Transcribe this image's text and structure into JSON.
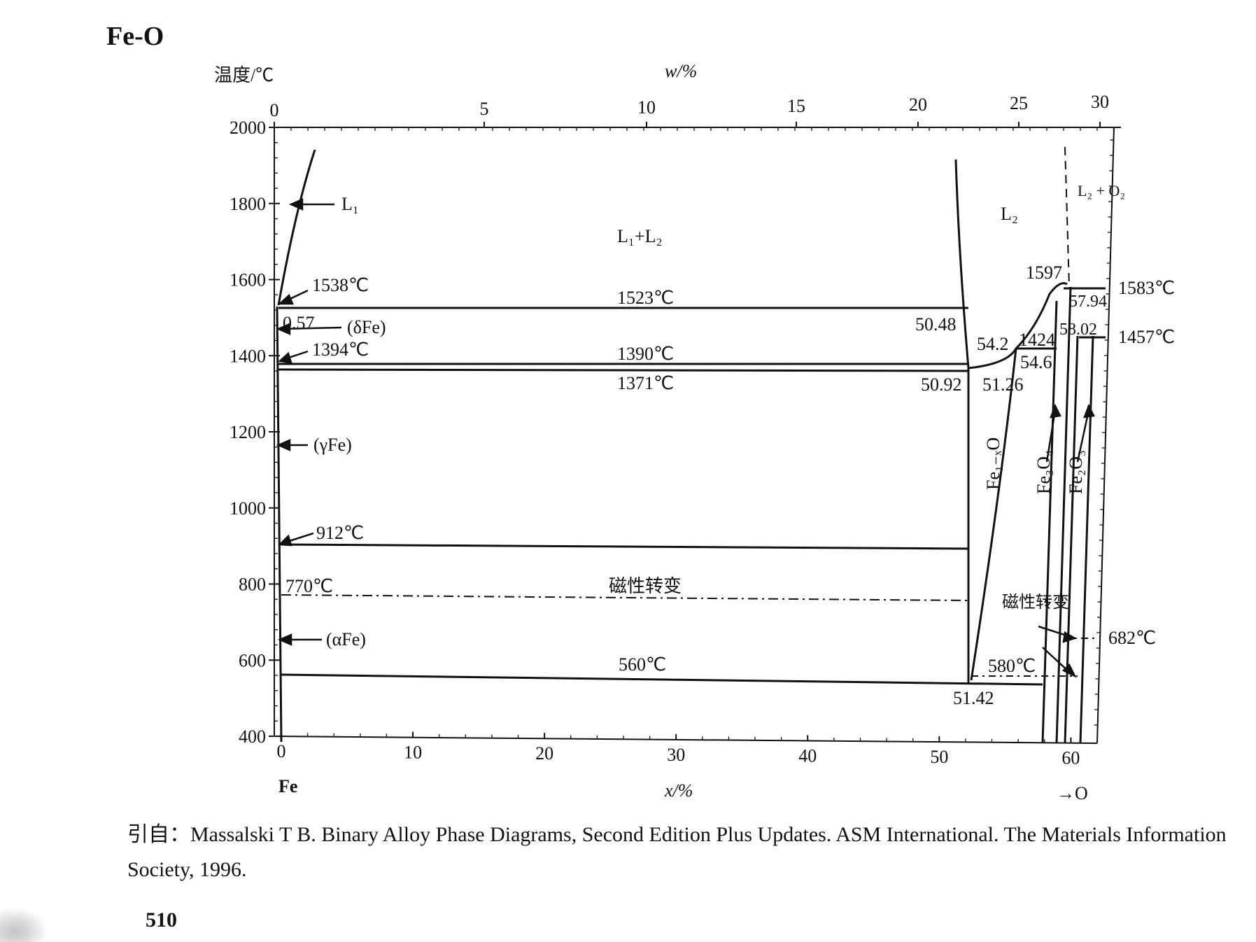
{
  "page": {
    "title": "Fe-O",
    "citation": "引自：Massalski T B. Binary Alloy Phase Diagrams, Second Edition Plus Updates. ASM International. The Materials Information Society, 1996.",
    "page_number": "510"
  },
  "chart_data": {
    "type": "phase-diagram",
    "ylabel": "温度/℃",
    "top_xlabel": "w/%",
    "bottom_xlabel": "x/%",
    "ylim": [
      400,
      2000
    ],
    "yticks": [
      "400",
      "600",
      "800",
      "1000",
      "1200",
      "1400",
      "1600",
      "1800",
      "2000"
    ],
    "xlim": [
      0,
      62
    ],
    "xticks": [
      "0",
      "10",
      "20",
      "30",
      "40",
      "50",
      "60"
    ],
    "top_ticks": [
      "0",
      "5",
      "10",
      "15",
      "20",
      "25",
      "30"
    ],
    "left_element": "Fe",
    "right_element": "→O",
    "phases": [
      "L₁",
      "L₁+L₂",
      "L₂",
      "L₂ + O₂",
      "(δFe)",
      "(γFe)",
      "(αFe)",
      "Fe₁₋ₓO",
      "Fe₃O₄",
      "Fe₂O₃"
    ],
    "magnetic_label": "磁性转变",
    "magnetic_label_right": "磁性转变",
    "isotherms": [
      {
        "temp": 1523,
        "label": "1523℃"
      },
      {
        "temp": 1390,
        "label": "1390℃"
      },
      {
        "temp": 1371,
        "label": "1371℃"
      },
      {
        "temp": 912,
        "label": "912℃"
      },
      {
        "temp": 770,
        "label": "770℃"
      },
      {
        "temp": 560,
        "label": "560℃"
      },
      {
        "temp": 580,
        "label": "580℃"
      },
      {
        "temp": 682,
        "label": "682℃"
      },
      {
        "temp": 1583,
        "label": "1583℃"
      },
      {
        "temp": 1457,
        "label": "1457℃"
      }
    ],
    "point_labels": [
      "1538℃",
      "1394℃",
      "0.57",
      "50.48",
      "50.92",
      "51.26",
      "51.42",
      "54.2",
      "54.6",
      "1424",
      "1597",
      "57.94",
      "58.02"
    ]
  }
}
